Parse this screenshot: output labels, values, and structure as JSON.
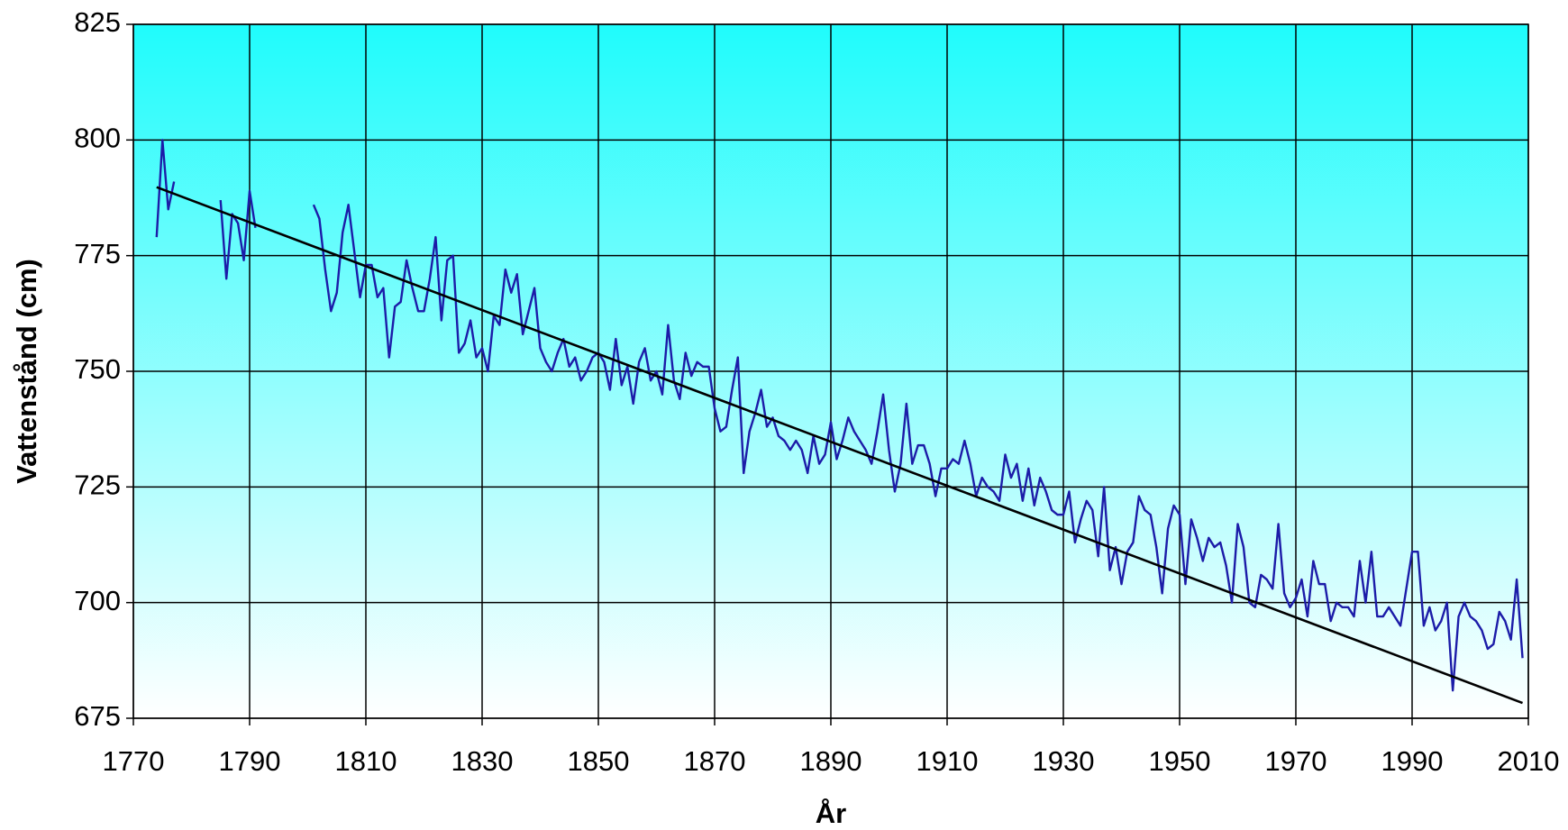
{
  "chart_data": {
    "type": "line",
    "xlabel": "År",
    "ylabel": "Vattenstånd (cm)",
    "xlim": [
      1770,
      2010
    ],
    "xticks": [
      1770,
      1790,
      1810,
      1830,
      1850,
      1870,
      1890,
      1910,
      1930,
      1950,
      1970,
      1990,
      2010
    ],
    "ylim": [
      675,
      825
    ],
    "yticks": [
      675,
      700,
      725,
      750,
      775,
      800,
      825
    ],
    "grid": true,
    "x": [
      1774,
      1775,
      1776,
      1777,
      1778,
      1785,
      1786,
      1787,
      1788,
      1789,
      1790,
      1791,
      1792,
      1801,
      1802,
      1803,
      1804,
      1805,
      1806,
      1807,
      1808,
      1809,
      1810,
      1811,
      1812,
      1813,
      1814,
      1815,
      1816,
      1817,
      1818,
      1819,
      1820,
      1821,
      1822,
      1823,
      1824,
      1825,
      1826,
      1827,
      1828,
      1829,
      1830,
      1831,
      1832,
      1833,
      1834,
      1835,
      1836,
      1837,
      1838,
      1839,
      1840,
      1841,
      1842,
      1843,
      1844,
      1845,
      1846,
      1847,
      1848,
      1849,
      1850,
      1851,
      1852,
      1853,
      1854,
      1855,
      1856,
      1857,
      1858,
      1859,
      1860,
      1861,
      1862,
      1863,
      1864,
      1865,
      1866,
      1867,
      1868,
      1869,
      1870,
      1871,
      1872,
      1873,
      1874,
      1875,
      1876,
      1877,
      1878,
      1879,
      1880,
      1881,
      1882,
      1883,
      1884,
      1885,
      1886,
      1887,
      1888,
      1889,
      1890,
      1891,
      1892,
      1893,
      1894,
      1895,
      1896,
      1897,
      1898,
      1899,
      1900,
      1901,
      1902,
      1903,
      1904,
      1905,
      1906,
      1907,
      1908,
      1909,
      1910,
      1911,
      1912,
      1913,
      1914,
      1915,
      1916,
      1917,
      1918,
      1919,
      1920,
      1921,
      1922,
      1923,
      1924,
      1925,
      1926,
      1927,
      1928,
      1929,
      1930,
      1931,
      1932,
      1933,
      1934,
      1935,
      1936,
      1937,
      1938,
      1939,
      1940,
      1941,
      1942,
      1943,
      1944,
      1945,
      1946,
      1947,
      1948,
      1949,
      1950,
      1951,
      1952,
      1953,
      1954,
      1955,
      1956,
      1957,
      1958,
      1959,
      1960,
      1961,
      1962,
      1963,
      1964,
      1965,
      1966,
      1967,
      1968,
      1969,
      1970,
      1971,
      1972,
      1973,
      1974,
      1975,
      1976,
      1977,
      1978,
      1979,
      1980,
      1981,
      1982,
      1983,
      1984,
      1985,
      1986,
      1987,
      1988,
      1989,
      1990,
      1991,
      1992,
      1993,
      1994,
      1995,
      1996,
      1997,
      1998,
      1999,
      2000,
      2001,
      2002,
      2003,
      2004,
      2005,
      2006,
      2007,
      2008,
      2009
    ],
    "series": [
      {
        "color": "#1c1ca8",
        "values": [
          779,
          800,
          785,
          791,
          null,
          787,
          770,
          784,
          782,
          774,
          789,
          781,
          null,
          786,
          783,
          772,
          763,
          767,
          780,
          786,
          776,
          766,
          773,
          773,
          766,
          768,
          753,
          764,
          765,
          774,
          768,
          763,
          763,
          770,
          779,
          761,
          774,
          775,
          754,
          756,
          761,
          753,
          755,
          750,
          762,
          760,
          772,
          767,
          771,
          758,
          763,
          768,
          755,
          752,
          750,
          754,
          757,
          751,
          753,
          748,
          750,
          753,
          754,
          752,
          746,
          757,
          747,
          751,
          743,
          752,
          755,
          748,
          750,
          745,
          760,
          748,
          744,
          754,
          749,
          752,
          751,
          751,
          742,
          737,
          738,
          746,
          753,
          728,
          737,
          741,
          746,
          738,
          740,
          736,
          735,
          733,
          735,
          733,
          728,
          736,
          730,
          732,
          739,
          731,
          735,
          740,
          737,
          735,
          733,
          730,
          737,
          745,
          733,
          724,
          730,
          743,
          730,
          734,
          734,
          730,
          723,
          729,
          729,
          731,
          730,
          735,
          730,
          723,
          727,
          725,
          724,
          722,
          732,
          727,
          730,
          722,
          729,
          721,
          727,
          724,
          720,
          719,
          719,
          724,
          713,
          718,
          722,
          720,
          710,
          725,
          707,
          712,
          704,
          711,
          713,
          723,
          720,
          719,
          712,
          702,
          716,
          721,
          719,
          704,
          718,
          714,
          709,
          714,
          712,
          713,
          708,
          700,
          717,
          712,
          700,
          699,
          706,
          705,
          703,
          717,
          702,
          699,
          701,
          705,
          697,
          709,
          704,
          704,
          696,
          700,
          699,
          699,
          697,
          709,
          700,
          711,
          697,
          697,
          699,
          697,
          695,
          703,
          711,
          711,
          695,
          699,
          694,
          696,
          700,
          681,
          697,
          700,
          697,
          696,
          694,
          690,
          691,
          698,
          696,
          692,
          705,
          688
        ]
      },
      {
        "color": "#000000",
        "x": [
          1774,
          2009
        ],
        "values": [
          789.8,
          678.3
        ]
      }
    ]
  }
}
